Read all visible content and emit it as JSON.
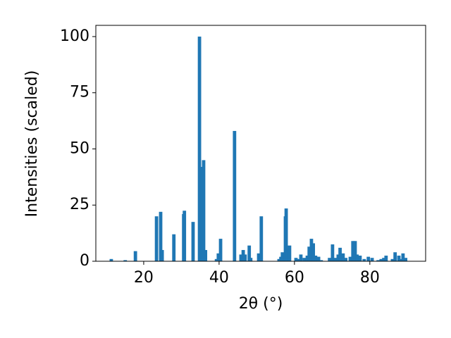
{
  "chart_data": {
    "type": "bar",
    "xlabel": "2θ (°)",
    "ylabel": "Intensities (scaled)",
    "color": "#1f77b4",
    "xlim": [
      7.3,
      94.8
    ],
    "ylim": [
      0,
      105
    ],
    "xticks": [
      20,
      40,
      60,
      80
    ],
    "yticks": [
      0,
      25,
      50,
      75,
      100
    ],
    "x": [
      11.4,
      15.1,
      17.8,
      23.4,
      24.5,
      24.9,
      28.0,
      30.6,
      30.8,
      33.1,
      34.8,
      35.5,
      35.9,
      36.4,
      39.3,
      39.8,
      40.4,
      44.1,
      45.8,
      46.4,
      46.9,
      48.0,
      48.4,
      50.5,
      51.2,
      55.9,
      56.4,
      56.8,
      57.6,
      57.8,
      58.1,
      58.7,
      60.4,
      60.9,
      61.7,
      62.6,
      63.4,
      63.9,
      64.5,
      65.0,
      65.6,
      66.4,
      67.1,
      69.3,
      70.1,
      70.8,
      71.6,
      72.1,
      72.9,
      73.6,
      74.8,
      75.5,
      76.1,
      76.6,
      77.4,
      78.5,
      79.6,
      80.6,
      82.2,
      83.0,
      83.7,
      84.3,
      86.0,
      86.7,
      87.7,
      88.0,
      88.8,
      89.5
    ],
    "values": [
      1,
      0.5,
      4.5,
      20,
      22,
      5,
      12,
      21,
      22.5,
      17.5,
      100,
      42,
      45,
      5,
      1,
      3.5,
      10,
      58,
      3,
      5,
      3,
      7,
      1.5,
      3.5,
      20,
      1,
      2,
      4,
      20,
      23.5,
      5.5,
      7,
      1.5,
      1,
      3,
      1.5,
      2.5,
      6.5,
      10,
      8,
      2.5,
      2,
      0.5,
      1.5,
      7.5,
      1.5,
      3,
      6,
      3.5,
      1.5,
      2,
      9,
      9,
      3,
      2.5,
      1,
      2,
      1.5,
      0.5,
      1,
      1.5,
      2.5,
      1,
      4,
      2.5,
      1,
      3.5,
      1.5
    ]
  }
}
